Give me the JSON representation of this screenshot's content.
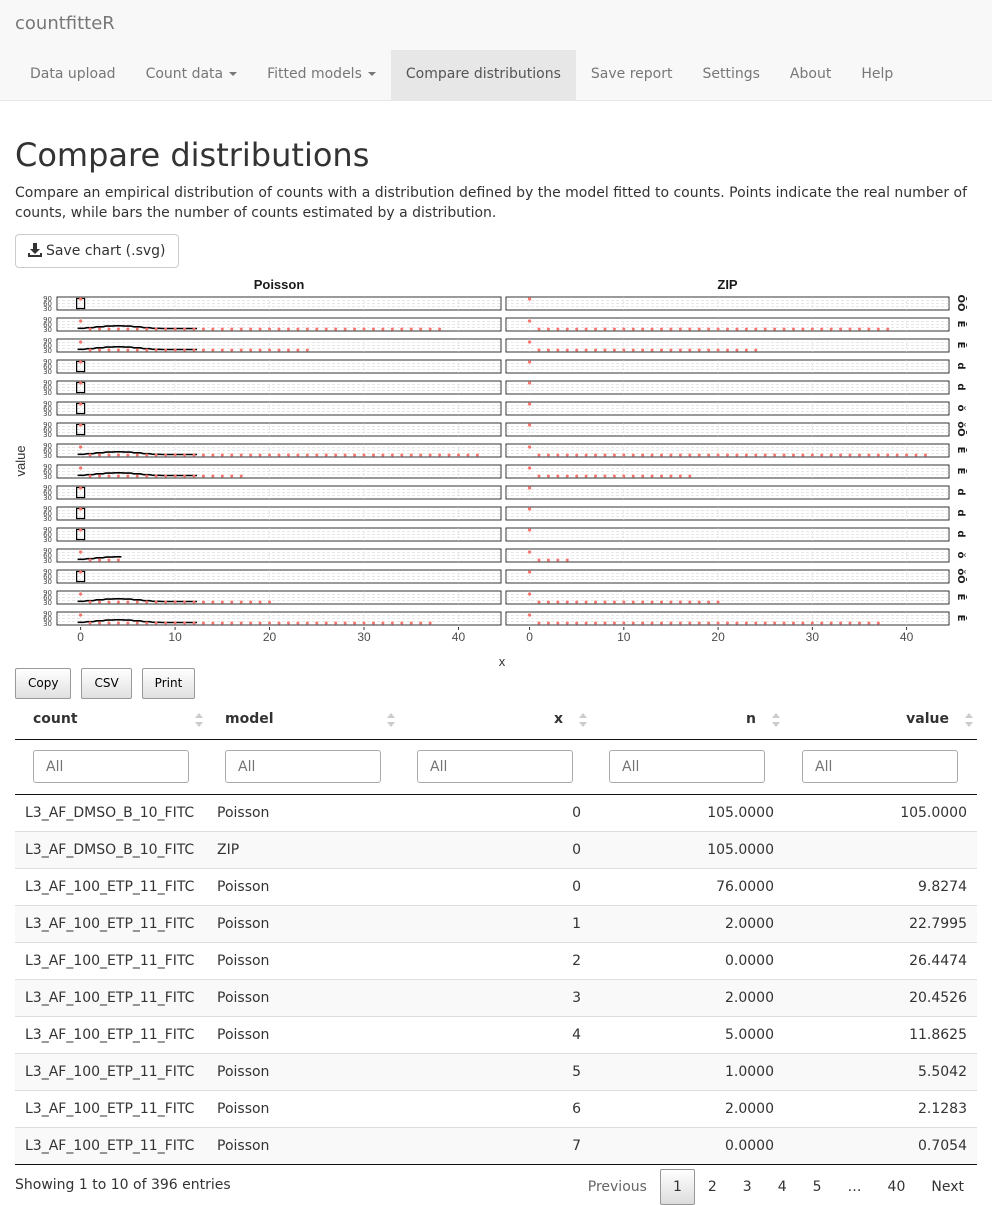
{
  "app": {
    "brand": "countfitteR"
  },
  "nav": [
    {
      "label": "Data upload",
      "dropdown": false,
      "active": false
    },
    {
      "label": "Count data",
      "dropdown": true,
      "active": false
    },
    {
      "label": "Fitted models",
      "dropdown": true,
      "active": false
    },
    {
      "label": "Compare distributions",
      "dropdown": false,
      "active": true
    },
    {
      "label": "Save report",
      "dropdown": false,
      "active": false
    },
    {
      "label": "Settings",
      "dropdown": false,
      "active": false
    },
    {
      "label": "About",
      "dropdown": false,
      "active": false
    },
    {
      "label": "Help",
      "dropdown": false,
      "active": false
    }
  ],
  "page": {
    "title": "Compare distributions",
    "description": "Compare an empirical distribution of counts with a distribution defined by the model fitted to counts. Points indicate the real number of counts, while bars the number of counts estimated by a distribution.",
    "save_button": "Save chart (.svg)"
  },
  "chart_data": {
    "type": "bar",
    "panels": [
      "Poisson",
      "ZIP"
    ],
    "xlabel": "x",
    "ylabel": "value",
    "xticks": [
      0,
      10,
      20,
      30,
      40
    ],
    "xlim": [
      -2.5,
      44.5
    ],
    "rows": [
      {
        "strip": "ŌŌ",
        "xmax_poisson": 0,
        "xmax_zip": 0,
        "nonzero": false
      },
      {
        "strip": "Ē",
        "xmax_poisson": 38,
        "xmax_zip": 38,
        "nonzero": true
      },
      {
        "strip": "Ē",
        "xmax_poisson": 24,
        "xmax_zip": 24,
        "nonzero": true
      },
      {
        "strip": "d",
        "xmax_poisson": 0,
        "xmax_zip": 0,
        "nonzero": false
      },
      {
        "strip": "d",
        "xmax_poisson": 0,
        "xmax_zip": 0,
        "nonzero": false
      },
      {
        "strip": "ŏ",
        "xmax_poisson": 0,
        "xmax_zip": 0,
        "nonzero": false
      },
      {
        "strip": "ŏŌ",
        "xmax_poisson": 0,
        "xmax_zip": 0,
        "nonzero": false
      },
      {
        "strip": "Ē",
        "xmax_poisson": 42,
        "xmax_zip": 42,
        "nonzero": true
      },
      {
        "strip": "Ē",
        "xmax_poisson": 17,
        "xmax_zip": 17,
        "nonzero": true
      },
      {
        "strip": "d",
        "xmax_poisson": 0,
        "xmax_zip": 0,
        "nonzero": false
      },
      {
        "strip": "d",
        "xmax_poisson": 0,
        "xmax_zip": 0,
        "nonzero": false
      },
      {
        "strip": "d",
        "xmax_poisson": 0,
        "xmax_zip": 0,
        "nonzero": false
      },
      {
        "strip": "ŏ",
        "xmax_poisson": 4,
        "xmax_zip": 4,
        "nonzero": true
      },
      {
        "strip": "ŏŌ",
        "xmax_poisson": 0,
        "xmax_zip": 0,
        "nonzero": false
      },
      {
        "strip": "Ē",
        "xmax_poisson": 20,
        "xmax_zip": 20,
        "nonzero": true
      },
      {
        "strip": "Ē",
        "xmax_poisson": 37,
        "xmax_zip": 37,
        "nonzero": true
      }
    ]
  },
  "table_buttons": [
    "Copy",
    "CSV",
    "Print"
  ],
  "table": {
    "columns": [
      {
        "key": "count",
        "label": "count",
        "numeric": false
      },
      {
        "key": "model",
        "label": "model",
        "numeric": false
      },
      {
        "key": "x",
        "label": "x",
        "numeric": true
      },
      {
        "key": "n",
        "label": "n",
        "numeric": true
      },
      {
        "key": "value",
        "label": "value",
        "numeric": true
      }
    ],
    "filter_placeholder": "All",
    "rows": [
      [
        "L3_AF_DMSO_B_10_FITC",
        "Poisson",
        "0",
        "105.0000",
        "105.0000"
      ],
      [
        "L3_AF_DMSO_B_10_FITC",
        "ZIP",
        "0",
        "105.0000",
        ""
      ],
      [
        "L3_AF_100_ETP_11_FITC",
        "Poisson",
        "0",
        "76.0000",
        "9.8274"
      ],
      [
        "L3_AF_100_ETP_11_FITC",
        "Poisson",
        "1",
        "2.0000",
        "22.7995"
      ],
      [
        "L3_AF_100_ETP_11_FITC",
        "Poisson",
        "2",
        "0.0000",
        "26.4474"
      ],
      [
        "L3_AF_100_ETP_11_FITC",
        "Poisson",
        "3",
        "2.0000",
        "20.4526"
      ],
      [
        "L3_AF_100_ETP_11_FITC",
        "Poisson",
        "4",
        "5.0000",
        "11.8625"
      ],
      [
        "L3_AF_100_ETP_11_FITC",
        "Poisson",
        "5",
        "1.0000",
        "5.5042"
      ],
      [
        "L3_AF_100_ETP_11_FITC",
        "Poisson",
        "6",
        "2.0000",
        "2.1283"
      ],
      [
        "L3_AF_100_ETP_11_FITC",
        "Poisson",
        "7",
        "0.0000",
        "0.7054"
      ]
    ],
    "info": "Showing 1 to 10 of 396 entries"
  },
  "pagination": {
    "previous": "Previous",
    "next": "Next",
    "pages": [
      "1",
      "2",
      "3",
      "4",
      "5",
      "…",
      "40"
    ],
    "current": "1"
  },
  "colors": {
    "point": "#f8766d",
    "bar": "#000000",
    "active_tab": "#e7e7e7"
  }
}
